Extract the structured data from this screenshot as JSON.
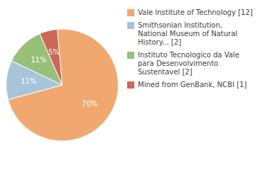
{
  "chart_data": {
    "type": "pie",
    "categories": [
      "Vale Institute of Technology [12]",
      "Smithsonian Institution,\nNational Museum of Natural\nHistory... [2]",
      "Instituto Tecnologico da Vale\npara Desenvolvimento\nSustentavel [2]",
      "Mined from GenBank, NCBI [1]"
    ],
    "values": [
      70,
      11,
      11,
      5
    ],
    "value_labels": [
      "70%",
      "11%",
      "11%",
      "5%"
    ],
    "colors": [
      "#f0a870",
      "#a8c4d8",
      "#98c078",
      "#cc6858"
    ],
    "data_labels": true,
    "legend": "right"
  }
}
